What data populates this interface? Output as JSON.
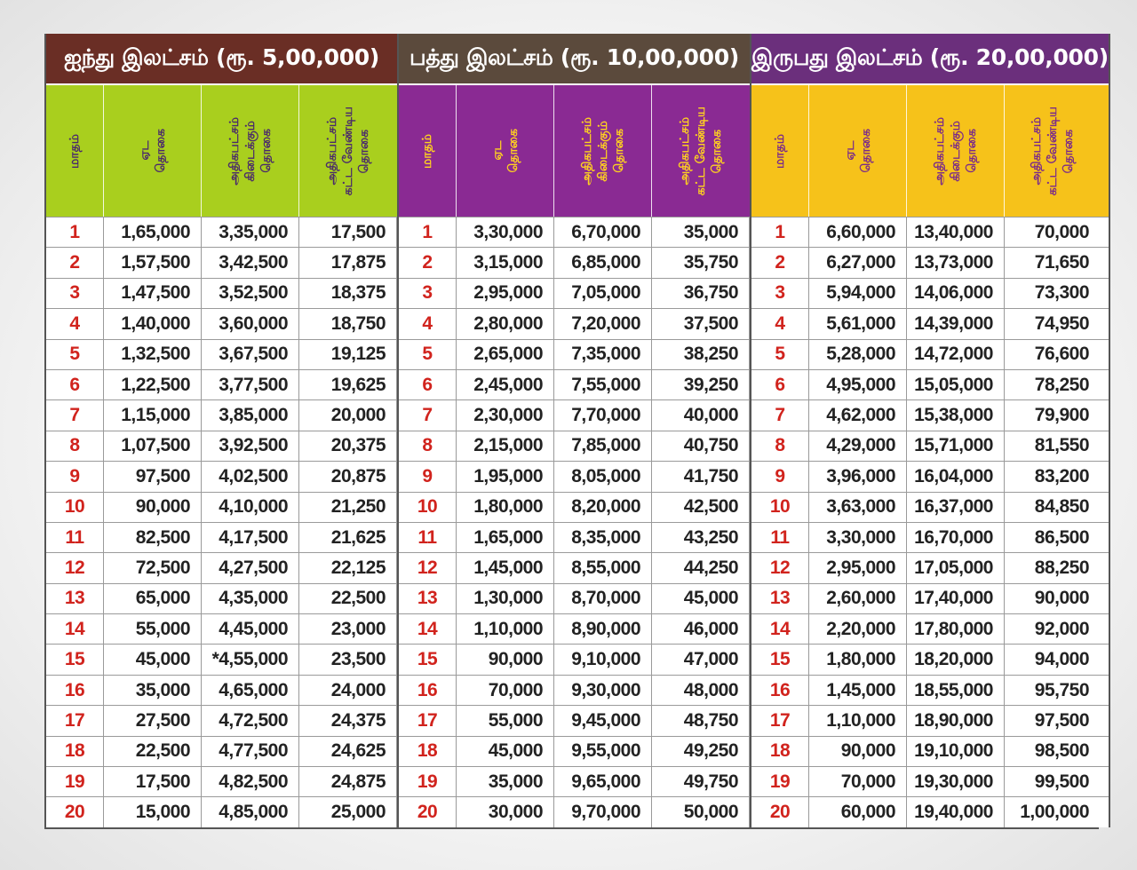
{
  "colors": {
    "group1_title_bg": "#6a2e25",
    "group2_title_bg": "#5b4a3c",
    "group3_title_bg": "#6b2f7c",
    "group1_sub_bg": "#a9cf1e",
    "group2_sub_bg": "#8a2a93",
    "group3_sub_bg": "#f6c21a",
    "group1_sub_text": "#4a2a6b",
    "group2_sub_text": "#ffd21f",
    "group3_sub_text": "#7a2a8a",
    "month_number": "#d1231d"
  },
  "groups": [
    {
      "title": "ஐந்து இலட்சம் (ரூ. 5,00,000)",
      "columns": [
        "மாதம்",
        "ஏட\nதொகை",
        "அதிகபட்சம்\nகிடைக்கும்\nதொகை",
        "அதிகபட்சம்\nகட்ட வேண்டிய\nதொகை"
      ],
      "rows": [
        [
          "1",
          "1,65,000",
          "3,35,000",
          "17,500"
        ],
        [
          "2",
          "1,57,500",
          "3,42,500",
          "17,875"
        ],
        [
          "3",
          "1,47,500",
          "3,52,500",
          "18,375"
        ],
        [
          "4",
          "1,40,000",
          "3,60,000",
          "18,750"
        ],
        [
          "5",
          "1,32,500",
          "3,67,500",
          "19,125"
        ],
        [
          "6",
          "1,22,500",
          "3,77,500",
          "19,625"
        ],
        [
          "7",
          "1,15,000",
          "3,85,000",
          "20,000"
        ],
        [
          "8",
          "1,07,500",
          "3,92,500",
          "20,375"
        ],
        [
          "9",
          "97,500",
          "4,02,500",
          "20,875"
        ],
        [
          "10",
          "90,000",
          "4,10,000",
          "21,250"
        ],
        [
          "11",
          "82,500",
          "4,17,500",
          "21,625"
        ],
        [
          "12",
          "72,500",
          "4,27,500",
          "22,125"
        ],
        [
          "13",
          "65,000",
          "4,35,000",
          "22,500"
        ],
        [
          "14",
          "55,000",
          "4,45,000",
          "23,000"
        ],
        [
          "15",
          "45,000",
          "*4,55,000",
          "23,500"
        ],
        [
          "16",
          "35,000",
          "4,65,000",
          "24,000"
        ],
        [
          "17",
          "27,500",
          "4,72,500",
          "24,375"
        ],
        [
          "18",
          "22,500",
          "4,77,500",
          "24,625"
        ],
        [
          "19",
          "17,500",
          "4,82,500",
          "24,875"
        ],
        [
          "20",
          "15,000",
          "4,85,000",
          "25,000"
        ]
      ]
    },
    {
      "title": "பத்து இலட்சம் (ரூ. 10,00,000)",
      "columns": [
        "மாதம்",
        "ஏட\nதொகை",
        "அதிகபட்சம்\nகிடைக்கும்\nதொகை",
        "அதிகபட்சம்\nகட்ட வேண்டிய\nதொகை"
      ],
      "rows": [
        [
          "1",
          "3,30,000",
          "6,70,000",
          "35,000"
        ],
        [
          "2",
          "3,15,000",
          "6,85,000",
          "35,750"
        ],
        [
          "3",
          "2,95,000",
          "7,05,000",
          "36,750"
        ],
        [
          "4",
          "2,80,000",
          "7,20,000",
          "37,500"
        ],
        [
          "5",
          "2,65,000",
          "7,35,000",
          "38,250"
        ],
        [
          "6",
          "2,45,000",
          "7,55,000",
          "39,250"
        ],
        [
          "7",
          "2,30,000",
          "7,70,000",
          "40,000"
        ],
        [
          "8",
          "2,15,000",
          "7,85,000",
          "40,750"
        ],
        [
          "9",
          "1,95,000",
          "8,05,000",
          "41,750"
        ],
        [
          "10",
          "1,80,000",
          "8,20,000",
          "42,500"
        ],
        [
          "11",
          "1,65,000",
          "8,35,000",
          "43,250"
        ],
        [
          "12",
          "1,45,000",
          "8,55,000",
          "44,250"
        ],
        [
          "13",
          "1,30,000",
          "8,70,000",
          "45,000"
        ],
        [
          "14",
          "1,10,000",
          "8,90,000",
          "46,000"
        ],
        [
          "15",
          "90,000",
          "9,10,000",
          "47,000"
        ],
        [
          "16",
          "70,000",
          "9,30,000",
          "48,000"
        ],
        [
          "17",
          "55,000",
          "9,45,000",
          "48,750"
        ],
        [
          "18",
          "45,000",
          "9,55,000",
          "49,250"
        ],
        [
          "19",
          "35,000",
          "9,65,000",
          "49,750"
        ],
        [
          "20",
          "30,000",
          "9,70,000",
          "50,000"
        ]
      ]
    },
    {
      "title": "இருபது இலட்சம் (ரூ. 20,00,000)",
      "columns": [
        "மாதம்",
        "ஏட\nதொகை",
        "அதிகபட்சம்\nகிடைக்கும்\nதொகை",
        "அதிகபட்சம்\nகட்ட வேண்டிய\nதொகை"
      ],
      "rows": [
        [
          "1",
          "6,60,000",
          "13,40,000",
          "70,000"
        ],
        [
          "2",
          "6,27,000",
          "13,73,000",
          "71,650"
        ],
        [
          "3",
          "5,94,000",
          "14,06,000",
          "73,300"
        ],
        [
          "4",
          "5,61,000",
          "14,39,000",
          "74,950"
        ],
        [
          "5",
          "5,28,000",
          "14,72,000",
          "76,600"
        ],
        [
          "6",
          "4,95,000",
          "15,05,000",
          "78,250"
        ],
        [
          "7",
          "4,62,000",
          "15,38,000",
          "79,900"
        ],
        [
          "8",
          "4,29,000",
          "15,71,000",
          "81,550"
        ],
        [
          "9",
          "3,96,000",
          "16,04,000",
          "83,200"
        ],
        [
          "10",
          "3,63,000",
          "16,37,000",
          "84,850"
        ],
        [
          "11",
          "3,30,000",
          "16,70,000",
          "86,500"
        ],
        [
          "12",
          "2,95,000",
          "17,05,000",
          "88,250"
        ],
        [
          "13",
          "2,60,000",
          "17,40,000",
          "90,000"
        ],
        [
          "14",
          "2,20,000",
          "17,80,000",
          "92,000"
        ],
        [
          "15",
          "1,80,000",
          "18,20,000",
          "94,000"
        ],
        [
          "16",
          "1,45,000",
          "18,55,000",
          "95,750"
        ],
        [
          "17",
          "1,10,000",
          "18,90,000",
          "97,500"
        ],
        [
          "18",
          "90,000",
          "19,10,000",
          "98,500"
        ],
        [
          "19",
          "70,000",
          "19,30,000",
          "99,500"
        ],
        [
          "20",
          "60,000",
          "19,40,000",
          "1,00,000"
        ]
      ]
    }
  ]
}
